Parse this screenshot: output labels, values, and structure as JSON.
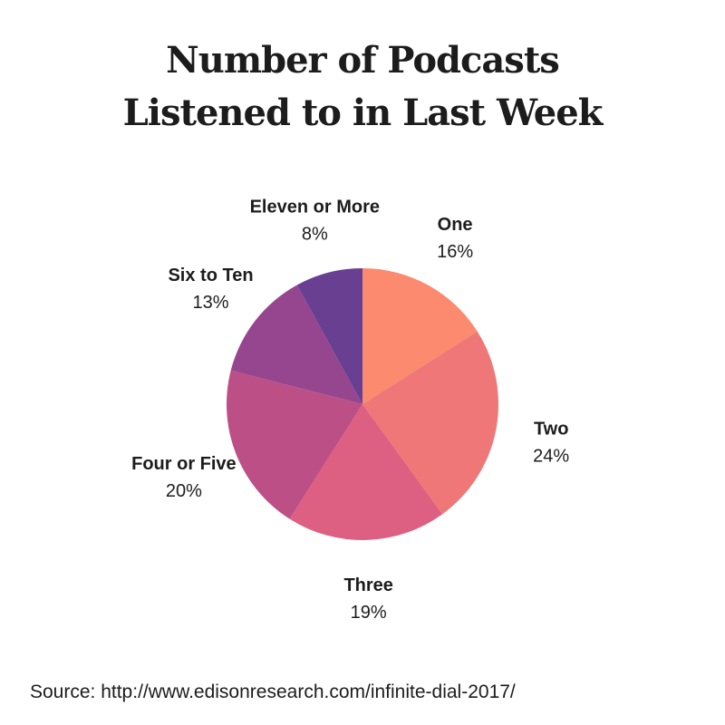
{
  "chart_data": {
    "type": "pie",
    "title": [
      "Number of Podcasts",
      "Listened to in Last Week"
    ],
    "slices": [
      {
        "label": "One",
        "value": 16,
        "value_label": "16%",
        "color": "#fb8a6e"
      },
      {
        "label": "Two",
        "value": 24,
        "value_label": "24%",
        "color": "#f07777"
      },
      {
        "label": "Three",
        "value": 19,
        "value_label": "19%",
        "color": "#dd5f82"
      },
      {
        "label": "Four or Five",
        "value": 20,
        "value_label": "20%",
        "color": "#bc4f85"
      },
      {
        "label": "Six to Ten",
        "value": 13,
        "value_label": "13%",
        "color": "#96458f"
      },
      {
        "label": "Eleven or More",
        "value": 8,
        "value_label": "8%",
        "color": "#683f91"
      }
    ],
    "start": "12 o'clock",
    "direction": "clockwise"
  },
  "source": "Source: http://www.edisonresearch.com/infinite-dial-2017/"
}
